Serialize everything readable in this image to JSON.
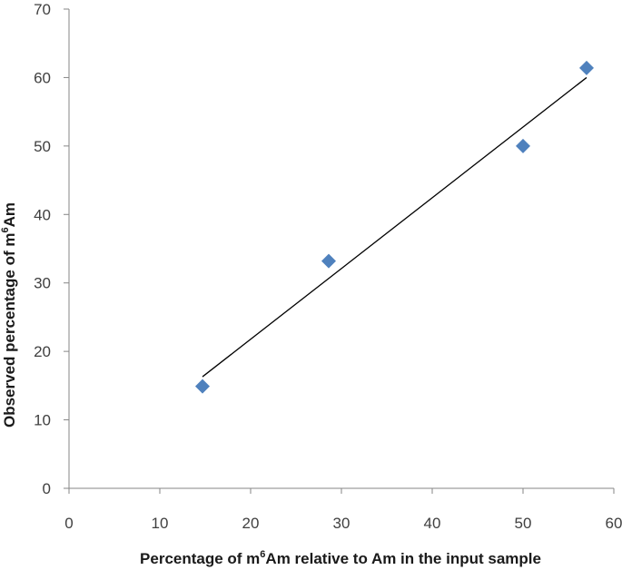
{
  "chart_data": {
    "type": "scatter",
    "xlabel": {
      "before": "Percentage of m",
      "sup": "6",
      "after": "Am relative to Am in the input sample"
    },
    "ylabel": {
      "before": "Observed percentage of m",
      "sup": "6",
      "after": "Am"
    },
    "xlim": [
      0,
      60
    ],
    "ylim": [
      0,
      70
    ],
    "xticks": [
      0,
      10,
      20,
      30,
      40,
      50,
      60
    ],
    "yticks": [
      0,
      10,
      20,
      30,
      40,
      50,
      60,
      70
    ],
    "grid": false,
    "legend": "none",
    "series": [
      {
        "marker": "diamond",
        "color": "#4F81BD",
        "points": [
          {
            "x": 14.7,
            "y": 14.9
          },
          {
            "x": 28.6,
            "y": 33.2
          },
          {
            "x": 50.0,
            "y": 50.0
          },
          {
            "x": 57.0,
            "y": 61.4
          }
        ]
      }
    ],
    "trendline": {
      "type": "linear",
      "color": "#000000",
      "x_start": 14.7,
      "x_end": 57.0,
      "y_start": 16.3,
      "y_end": 60.0
    }
  }
}
